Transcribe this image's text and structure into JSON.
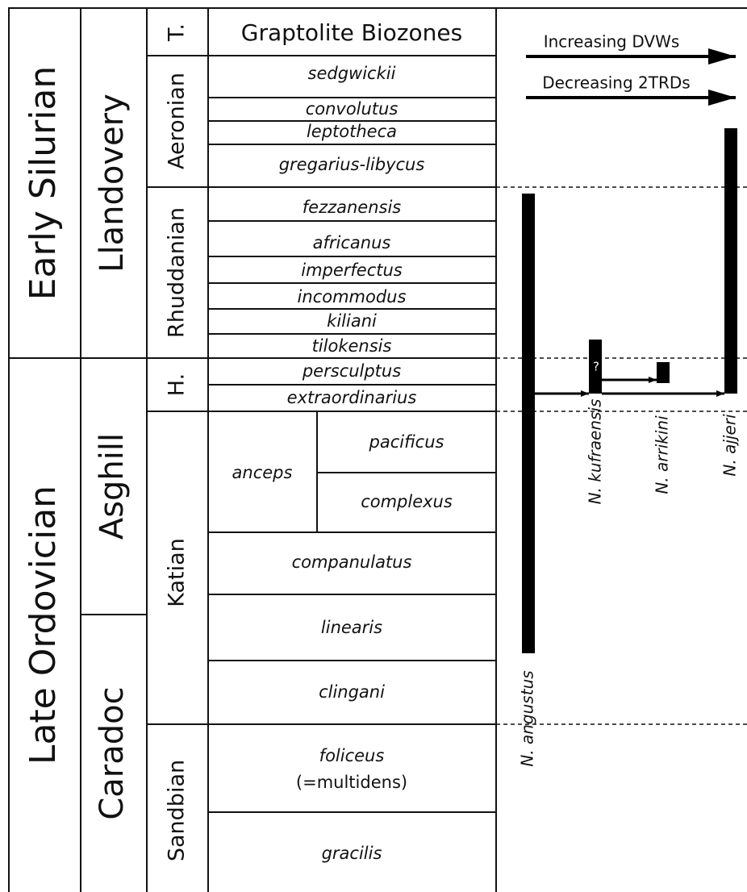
{
  "series": [
    "Early Silurian",
    "Late Ordovician"
  ],
  "epochs": [
    "Llandovery",
    "Asghill",
    "Caradoc"
  ],
  "stages": [
    "T.",
    "Aeronian",
    "Rhuddanian",
    "H.",
    "Katian",
    "Sandbian"
  ],
  "header": "Graptolite Biozones",
  "biozones": [
    "sedgwickii",
    "convolutus",
    "leptotheca",
    "gregarius-libycus",
    "fezzanensis",
    "africanus",
    "imperfectus",
    "incommodus",
    "kiliani",
    "tilokensis",
    "persculptus",
    "extraordinarius",
    "anceps",
    "pacificus",
    "complexus",
    "companulatus",
    "linearis",
    "clingani",
    "foliceus",
    "(=multidens)",
    "gracilis"
  ],
  "trends": [
    "Increasing DVWs",
    "Decreasing 2TRDs"
  ],
  "taxa": [
    "N. angustus",
    "N. kufraensis",
    "N. arrikini",
    "N. ajjeri"
  ],
  "uncertain": "?"
}
